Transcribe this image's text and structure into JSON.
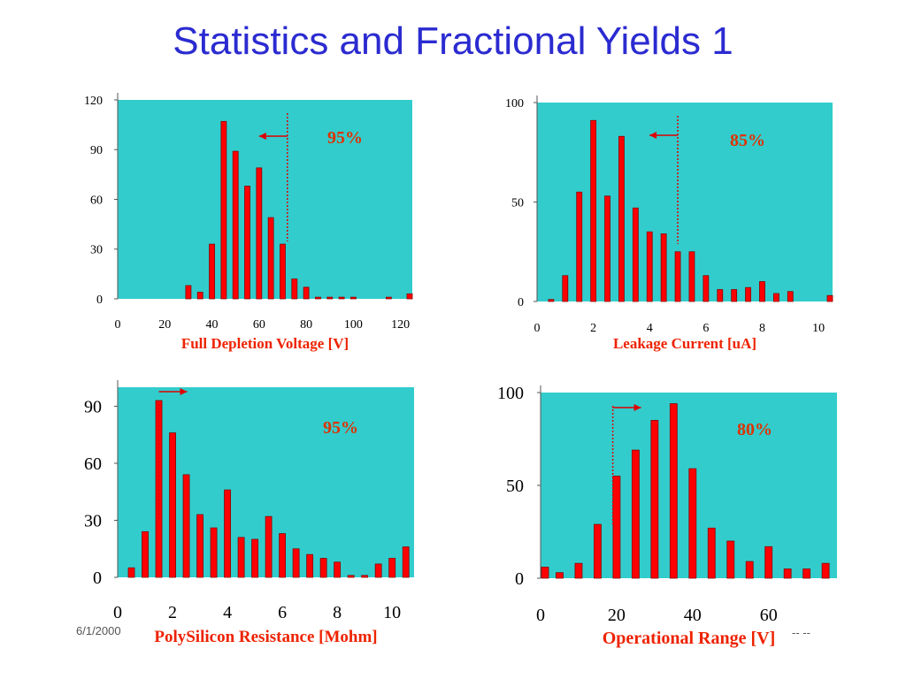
{
  "slide": {
    "title": "Statistics and Fractional Yields 1",
    "date": "6/1/2000",
    "page": "-- --"
  },
  "chart_data": [
    {
      "type": "bar",
      "xlabel": "Full Depletion Voltage [V]",
      "xlim": [
        0,
        125
      ],
      "ylim": [
        0,
        120
      ],
      "xticks": [
        0,
        20,
        40,
        60,
        80,
        100,
        120
      ],
      "yticks": [
        0,
        30,
        60,
        90,
        120
      ],
      "x": [
        30,
        35,
        40,
        45,
        50,
        55,
        60,
        65,
        70,
        75,
        80,
        85,
        90,
        95,
        100,
        115,
        125
      ],
      "values": [
        8,
        4,
        33,
        107,
        89,
        68,
        79,
        49,
        33,
        12,
        7,
        1,
        1,
        1,
        1,
        1,
        3
      ],
      "annotation": "95%",
      "cut_x": 72,
      "arrow": "left"
    },
    {
      "type": "bar",
      "xlabel": "Leakage Current [uA]",
      "xlim": [
        0,
        10.5
      ],
      "ylim": [
        0,
        100
      ],
      "xticks": [
        0,
        2,
        4,
        6,
        8,
        10
      ],
      "yticks": [
        0,
        50,
        100
      ],
      "x": [
        0.5,
        1,
        1.5,
        2,
        2.5,
        3,
        3.5,
        4,
        4.5,
        5,
        5.5,
        6,
        6.5,
        7,
        7.5,
        8,
        8.5,
        9,
        10.5
      ],
      "values": [
        1,
        13,
        55,
        91,
        53,
        83,
        47,
        35,
        34,
        25,
        25,
        13,
        6,
        6,
        7,
        10,
        4,
        5,
        3
      ],
      "annotation": "85%",
      "cut_x": 5,
      "arrow": "left"
    },
    {
      "type": "bar",
      "xlabel": "PolySilicon Resistance [Mohm]",
      "xlim": [
        0,
        10.8
      ],
      "ylim": [
        0,
        100
      ],
      "xticks": [
        0,
        2,
        4,
        6,
        8,
        10
      ],
      "yticks": [
        0,
        30,
        60,
        90
      ],
      "x": [
        0.5,
        1,
        1.5,
        2,
        2.5,
        3,
        3.5,
        4,
        4.5,
        5,
        5.5,
        6,
        6.5,
        7,
        7.5,
        8,
        8.5,
        9,
        9.5,
        10,
        10.5
      ],
      "values": [
        5,
        24,
        93,
        76,
        54,
        33,
        26,
        46,
        21,
        20,
        32,
        23,
        15,
        12,
        10,
        8,
        1,
        1,
        7,
        10,
        16
      ],
      "annotation": "95%",
      "cut_x": 1.5,
      "arrow": "right"
    },
    {
      "type": "bar",
      "xlabel": "Operational Range [V]",
      "xlim": [
        0,
        78
      ],
      "ylim": [
        0,
        100
      ],
      "xticks": [
        0,
        20,
        40,
        60
      ],
      "yticks": [
        0,
        50,
        100
      ],
      "x": [
        0,
        5,
        10,
        15,
        20,
        25,
        30,
        35,
        40,
        45,
        50,
        55,
        60,
        65,
        70,
        75
      ],
      "values": [
        6,
        3,
        8,
        29,
        55,
        69,
        85,
        94,
        59,
        27,
        20,
        9,
        17,
        5,
        5,
        8
      ],
      "annotation": "80%",
      "cut_x": 19,
      "arrow": "right"
    }
  ]
}
